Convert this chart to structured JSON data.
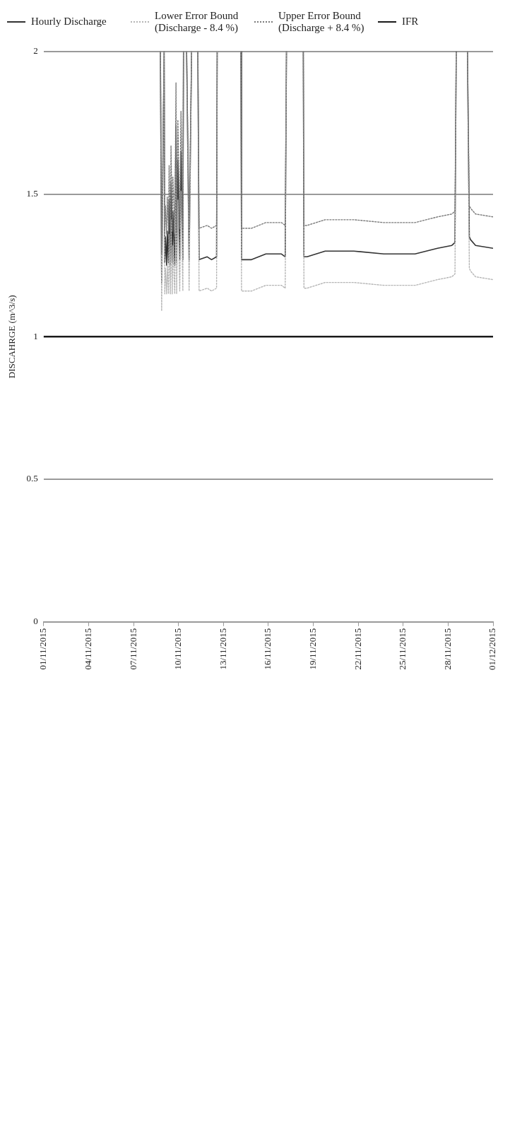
{
  "chart_data": {
    "type": "line",
    "ylabel": "DISCAHRGE (m^3/s)",
    "legend": "top",
    "grid": "y",
    "marker": "none",
    "xlim": [
      "2015-11-01",
      "2015-12-01"
    ],
    "xticks": [
      {
        "value": "2015-11-01",
        "label": "01/11/2015"
      },
      {
        "value": "2015-11-04",
        "label": "04/11/2015"
      },
      {
        "value": "2015-11-07",
        "label": "07/11/2015"
      },
      {
        "value": "2015-11-10",
        "label": "10/11/2015"
      },
      {
        "value": "2015-11-13",
        "label": "13/11/2015"
      },
      {
        "value": "2015-11-16",
        "label": "16/11/2015"
      },
      {
        "value": "2015-11-19",
        "label": "19/11/2015"
      },
      {
        "value": "2015-11-22",
        "label": "22/11/2015"
      },
      {
        "value": "2015-11-25",
        "label": "25/11/2015"
      },
      {
        "value": "2015-11-28",
        "label": "28/11/2015"
      },
      {
        "value": "2015-12-01",
        "label": "01/12/2015"
      }
    ],
    "ylim": [
      0,
      2
    ],
    "yticks": [
      0,
      0.5,
      1,
      1.5,
      2
    ],
    "x": [
      "2015-11-08T19:00",
      "2015-11-08T21:00",
      "2015-11-09T01:00",
      "2015-11-09T02:00",
      "2015-11-09T03:00",
      "2015-11-09T05:00",
      "2015-11-09T06:00",
      "2015-11-09T08:00",
      "2015-11-09T09:00",
      "2015-11-09T11:00",
      "2015-11-09T12:00",
      "2015-11-09T14:00",
      "2015-11-09T15:00",
      "2015-11-09T18:00",
      "2015-11-09T20:00",
      "2015-11-09T21:00",
      "2015-11-09T23:00",
      "2015-11-10T02:00",
      "2015-11-10T04:00",
      "2015-11-10T07:00",
      "2015-11-10T08:00",
      "2015-11-10T10:00",
      "2015-11-10T13:00",
      "2015-11-10T17:00",
      "2015-11-10T21:00",
      "2015-11-11T02:00",
      "2015-11-11T07:00",
      "2015-11-11T09:00",
      "2015-11-11T22:00",
      "2015-11-12T05:00",
      "2015-11-12T13:00",
      "2015-11-12T14:00",
      "2015-11-13T00:00",
      "2015-11-14T04:00",
      "2015-11-14T05:00",
      "2015-11-14T21:00",
      "2015-11-15T20:00",
      "2015-11-16T21:00",
      "2015-11-17T03:00",
      "2015-11-17T05:00",
      "2015-11-18T00:00",
      "2015-11-18T08:00",
      "2015-11-18T09:00",
      "2015-11-18T14:00",
      "2015-11-19T19:00",
      "2015-11-21T17:00",
      "2015-11-23T17:00",
      "2015-11-25T19:00",
      "2015-11-27T07:00",
      "2015-11-28T06:00",
      "2015-11-28T11:00",
      "2015-11-28T13:00",
      "2015-11-29T00:00",
      "2015-11-29T07:00",
      "2015-11-29T10:00",
      "2015-11-29T12:00",
      "2015-11-29T20:00",
      "2015-12-01T00:00"
    ],
    "series": [
      {
        "name": "Hourly Discharge",
        "color": "#333333",
        "line_style": "solid",
        "values": [
          2,
          1.19,
          2,
          1.26,
          1.35,
          1.25,
          1.37,
          1.26,
          1.48,
          1.25,
          1.54,
          1.26,
          1.44,
          1.25,
          1.74,
          1.26,
          1.62,
          1.27,
          1.65,
          1.27,
          2,
          null,
          2,
          1.27,
          2,
          null,
          2,
          1.27,
          1.28,
          1.27,
          1.28,
          2,
          null,
          2,
          1.27,
          1.27,
          1.29,
          1.29,
          1.28,
          2,
          null,
          2,
          1.28,
          1.28,
          1.3,
          1.3,
          1.29,
          1.29,
          1.31,
          1.32,
          1.33,
          2,
          null,
          2,
          1.35,
          1.34,
          1.32,
          1.31
        ]
      },
      {
        "name": "Lower Error Bound (Discharge - 8.4 %)",
        "color": "#b5b5b5",
        "line_style": "dotted",
        "values": [
          2,
          1.09,
          2,
          1.15,
          1.24,
          1.15,
          1.25,
          1.15,
          1.36,
          1.15,
          1.41,
          1.15,
          1.32,
          1.15,
          1.59,
          1.15,
          1.48,
          1.16,
          1.51,
          1.16,
          2,
          null,
          2,
          1.16,
          2,
          null,
          2,
          1.16,
          1.17,
          1.16,
          1.17,
          2,
          null,
          2,
          1.16,
          1.16,
          1.18,
          1.18,
          1.17,
          2,
          null,
          2,
          1.17,
          1.17,
          1.19,
          1.19,
          1.18,
          1.18,
          1.2,
          1.21,
          1.22,
          2,
          null,
          2,
          1.24,
          1.23,
          1.21,
          1.2
        ]
      },
      {
        "name": "Upper Error Bound (Discharge + 8.4 %)",
        "color": "#7a7a7a",
        "line_style": "dotted",
        "values": [
          2,
          1.29,
          2,
          1.37,
          1.46,
          1.36,
          1.49,
          1.37,
          1.6,
          1.36,
          1.67,
          1.37,
          1.56,
          1.36,
          1.89,
          1.37,
          1.76,
          1.38,
          1.79,
          1.38,
          2,
          null,
          2,
          1.38,
          2,
          null,
          2,
          1.38,
          1.39,
          1.38,
          1.39,
          2,
          null,
          2,
          1.38,
          1.38,
          1.4,
          1.4,
          1.39,
          2,
          null,
          2,
          1.39,
          1.39,
          1.41,
          1.41,
          1.4,
          1.4,
          1.42,
          1.43,
          1.44,
          2,
          null,
          2,
          1.46,
          1.45,
          1.43,
          1.42
        ]
      },
      {
        "name": "IFR",
        "color": "#1a1a1a",
        "line_style": "solid",
        "x": [
          "2015-11-01",
          "2015-12-01"
        ],
        "values": [
          1,
          1
        ]
      }
    ]
  }
}
